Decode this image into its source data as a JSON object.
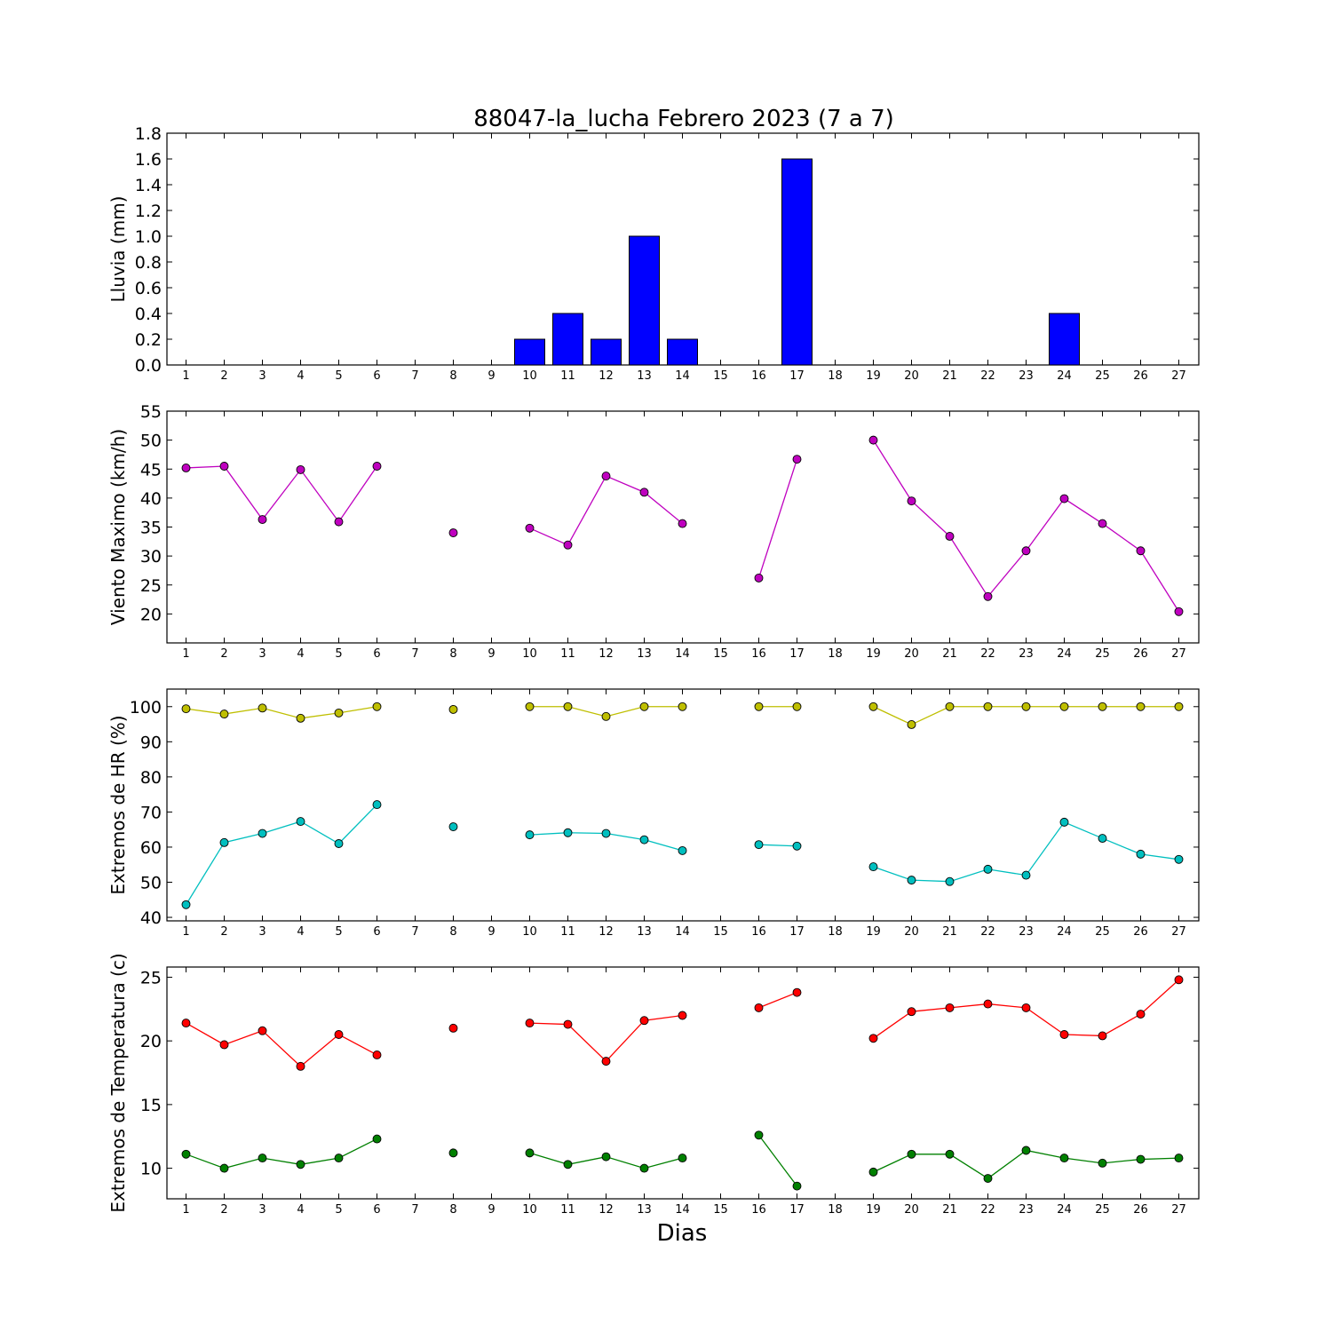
{
  "chart_data": {
    "title": "88047-la_lucha Febrero 2023  (7 a 7)",
    "xlabel": "Dias",
    "days": [
      1,
      2,
      3,
      4,
      5,
      6,
      7,
      8,
      9,
      10,
      11,
      12,
      13,
      14,
      15,
      16,
      17,
      18,
      19,
      20,
      21,
      22,
      23,
      24,
      25,
      26,
      27
    ],
    "panels": [
      {
        "id": "lluvia",
        "type": "bar",
        "ylabel": "Lluvia (mm)",
        "ylim": [
          0,
          1.8
        ],
        "yticks": [
          "0.0",
          "0.2",
          "0.4",
          "0.6",
          "0.8",
          "1.0",
          "1.2",
          "1.4",
          "1.6",
          "1.8"
        ],
        "series": [
          {
            "color": "#0000ff",
            "values": [
              0,
              0,
              0,
              0,
              0,
              0,
              null,
              0,
              null,
              0.2,
              0.4,
              0.2,
              1.0,
              0.2,
              null,
              0,
              1.6,
              null,
              0,
              0,
              0,
              0,
              0,
              0.4,
              0,
              0,
              0
            ]
          }
        ]
      },
      {
        "id": "viento",
        "type": "line",
        "ylabel": "Viento Maximo (km/h)",
        "ylim": [
          15,
          55
        ],
        "yticks": [
          "20",
          "25",
          "30",
          "35",
          "40",
          "45",
          "50",
          "55"
        ],
        "series": [
          {
            "color": "#bf00bf",
            "values": [
              45.2,
              45.5,
              36.3,
              44.9,
              35.9,
              45.5,
              null,
              34.0,
              null,
              34.8,
              31.9,
              43.8,
              41.0,
              35.6,
              null,
              26.2,
              46.7,
              null,
              50.0,
              39.5,
              33.4,
              23.0,
              30.9,
              39.9,
              35.6,
              30.9,
              20.4
            ]
          }
        ]
      },
      {
        "id": "hr",
        "type": "line",
        "ylabel": "Extremos de HR (%)",
        "ylim": [
          39,
          105
        ],
        "yticks": [
          "40",
          "50",
          "60",
          "70",
          "80",
          "90",
          "100"
        ],
        "series": [
          {
            "color": "#bfbf00",
            "values": [
              99.4,
              97.9,
              99.6,
              96.7,
              98.2,
              100,
              null,
              99.2,
              null,
              100,
              100,
              97.2,
              100,
              100,
              null,
              100,
              100,
              null,
              100,
              94.9,
              100,
              100,
              100,
              100,
              100,
              100,
              100
            ]
          },
          {
            "color": "#00bfbf",
            "values": [
              43.6,
              61.3,
              63.9,
              67.3,
              61.0,
              72.1,
              null,
              65.8,
              null,
              63.5,
              64.1,
              63.9,
              62.1,
              59.0,
              null,
              60.7,
              60.3,
              null,
              54.4,
              50.6,
              50.2,
              53.7,
              52.0,
              67.1,
              62.5,
              58.0,
              56.5
            ]
          }
        ]
      },
      {
        "id": "temperatura",
        "type": "line",
        "ylabel": "Extremos de Temperatura (c)",
        "ylim": [
          7.6,
          25.8
        ],
        "yticks": [
          "10",
          "15",
          "20",
          "25"
        ],
        "series": [
          {
            "color": "#ff0000",
            "values": [
              21.4,
              19.7,
              20.8,
              18.0,
              20.5,
              18.9,
              null,
              21.0,
              null,
              21.4,
              21.3,
              18.4,
              21.6,
              22.0,
              null,
              22.6,
              23.8,
              null,
              20.2,
              22.3,
              22.6,
              22.9,
              22.6,
              20.5,
              20.4,
              22.1,
              24.8
            ]
          },
          {
            "color": "#008000",
            "values": [
              11.1,
              10.0,
              10.8,
              10.3,
              10.8,
              12.3,
              null,
              11.2,
              null,
              11.2,
              10.3,
              10.9,
              10.0,
              10.8,
              null,
              12.6,
              8.6,
              null,
              9.7,
              11.1,
              11.1,
              9.2,
              11.4,
              10.8,
              10.4,
              10.7,
              10.8
            ]
          }
        ]
      }
    ]
  }
}
